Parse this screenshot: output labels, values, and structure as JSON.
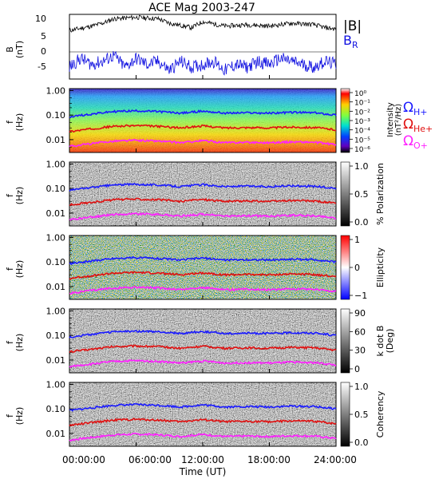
{
  "title": "ACE Mag 2003-247",
  "colors": {
    "total_field": "#000000",
    "radial_field": "#1010e0",
    "h_plus": "#1a1aff",
    "he_plus": "#e01010",
    "o_plus": "#ff20ff"
  },
  "chart_data": [
    {
      "type": "line",
      "panel": "field",
      "ylabel": "B (nT)",
      "ylim": [
        -10,
        12
      ],
      "yticks": [
        "10",
        "5",
        "0",
        "-5"
      ],
      "xticks": [
        "00:00:00",
        "06:00:00",
        "12:00:00",
        "18:00:00",
        "24:00:00"
      ],
      "series": [
        {
          "name": "|B|",
          "color": "#000000",
          "x_hours": [
            0,
            2,
            3,
            4,
            6,
            8,
            9,
            11,
            12,
            14,
            16,
            18,
            20,
            22,
            23,
            24
          ],
          "values": [
            6.5,
            8,
            9,
            10.5,
            11,
            10.5,
            9,
            7.5,
            9.5,
            8,
            8.5,
            8,
            9,
            8.5,
            7.5,
            7
          ]
        },
        {
          "name": "B_R",
          "color": "#1010e0",
          "x_hours": [
            0,
            1,
            2,
            3,
            4,
            5,
            6,
            7,
            8,
            9,
            10,
            11,
            12,
            13,
            14,
            15,
            16,
            17,
            18,
            19,
            20,
            21,
            22,
            23,
            24
          ],
          "values": [
            -6,
            -3,
            -5,
            -4,
            -2,
            -6,
            -3,
            -5,
            -4,
            -7,
            -4,
            -6,
            -5,
            -4,
            -7,
            -5,
            -6,
            -4,
            -5,
            -3,
            -4,
            -5,
            -6,
            -4,
            -5
          ]
        }
      ]
    },
    {
      "type": "heatmap",
      "panel": "intensity",
      "ylabel": "f (Hz)",
      "yticks": [
        "1.00",
        "0.10",
        "0.01"
      ],
      "ylim": [
        0.003,
        1.2
      ],
      "yscale": "log",
      "colorbar_label": "Intensity (nT²/Hz)",
      "colorbar_ticks": [
        "10⁰",
        "10⁻¹",
        "10⁻²",
        "10⁻³",
        "10⁻⁴",
        "10⁻⁵",
        "10⁻⁶"
      ],
      "legend": [
        "ΩH+",
        "ΩHe+",
        "ΩO+"
      ]
    },
    {
      "type": "heatmap",
      "panel": "polarization",
      "ylabel": "f (Hz)",
      "yticks": [
        "1.00",
        "0.10",
        "0.01"
      ],
      "colorbar_label": "% Polarization",
      "colorbar_ticks": [
        "1.0",
        "0.5",
        "0.0"
      ]
    },
    {
      "type": "heatmap",
      "panel": "ellipticity",
      "ylabel": "f (Hz)",
      "yticks": [
        "1.00",
        "0.10",
        "0.01"
      ],
      "colorbar_label": "Ellipticity",
      "colorbar_ticks": [
        "1",
        "0",
        "−1"
      ]
    },
    {
      "type": "heatmap",
      "panel": "kdotb",
      "ylabel": "f (Hz)",
      "yticks": [
        "1.00",
        "0.10",
        "0.01"
      ],
      "colorbar_label": "k dot B (Deg)",
      "colorbar_ticks": [
        "90",
        "60",
        "30",
        "0"
      ]
    },
    {
      "type": "heatmap",
      "panel": "coherency",
      "ylabel": "f (Hz)",
      "yticks": [
        "1.00",
        "0.10",
        "0.01"
      ],
      "colorbar_label": "Coherency",
      "colorbar_ticks": [
        "1.0",
        "0.5",
        "0.0"
      ]
    }
  ],
  "gyrofrequency_hz": {
    "x_hours": [
      0,
      2,
      4,
      6,
      8,
      10,
      12,
      14,
      16,
      18,
      20,
      22,
      24
    ],
    "h_plus": [
      0.085,
      0.11,
      0.14,
      0.15,
      0.14,
      0.12,
      0.145,
      0.12,
      0.125,
      0.12,
      0.13,
      0.125,
      0.1
    ]
  },
  "labels": {
    "b_label": "B",
    "b_unit": "(nT)",
    "legend_total": "|B|",
    "legend_radial": "B",
    "legend_radial_sub": "R",
    "f_label": "f",
    "f_unit": "(Hz)",
    "omega_h": "Ω",
    "omega_h_sub": "H+",
    "omega_he": "Ω",
    "omega_he_sub": "He+",
    "omega_o": "Ω",
    "omega_o_sub": "O+",
    "cb_intensity_1": "Intensity",
    "cb_intensity_2": "(nT²/Hz)",
    "cb_polarization": "% Polarization",
    "cb_ellipticity": "Ellipticity",
    "cb_kdotb_1": "k dot B",
    "cb_kdotb_2": "(Deg)",
    "cb_coherency": "Coherency",
    "xlabel": "Time (UT)"
  }
}
